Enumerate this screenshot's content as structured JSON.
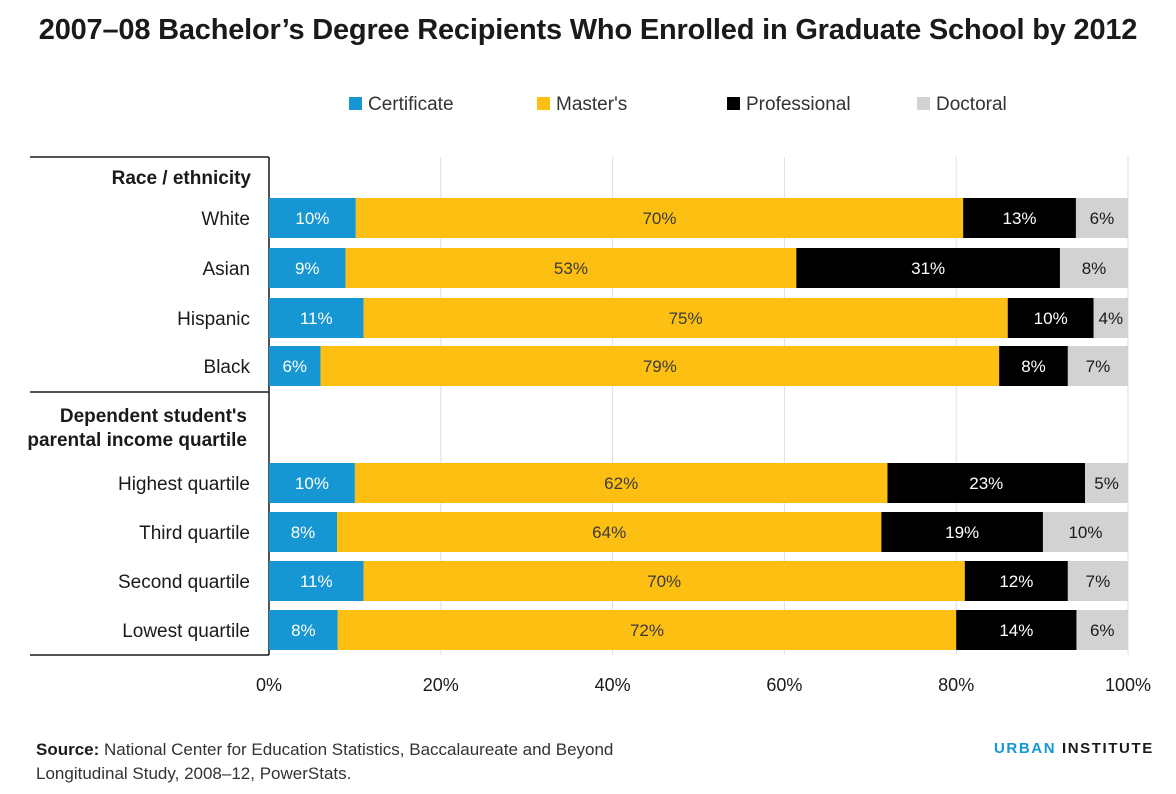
{
  "title": "2007–08 Bachelor’s Degree Recipients Who Enrolled in Graduate School by 2012",
  "source": {
    "label": "Source:",
    "line1": "National Center for Education Statistics, Baccalaureate and Beyond",
    "line2": "Longitudinal Study, 2008–12, PowerStats."
  },
  "brand": {
    "part1": "URBAN",
    "part2": "INSTITUTE"
  },
  "chart_data": {
    "type": "bar",
    "orientation": "horizontal",
    "stacked": true,
    "legend_position": "top",
    "xlim": [
      0,
      100
    ],
    "x_ticks": [
      "0%",
      "20%",
      "40%",
      "60%",
      "80%",
      "100%"
    ],
    "grid": true,
    "series": [
      {
        "name": "Certificate",
        "color": "#1696d2",
        "text_color": "#ffffff"
      },
      {
        "name": "Master's",
        "color": "#fdbf11",
        "text_color": "#3a3a3a"
      },
      {
        "name": "Professional",
        "color": "#000000",
        "text_color": "#ffffff"
      },
      {
        "name": "Doctoral",
        "color": "#d2d2d2",
        "text_color": "#1a1a1a"
      }
    ],
    "groups": [
      {
        "label": "Race / ethnicity",
        "rows": [
          {
            "category": "White",
            "values": [
              10,
              70,
              13,
              6
            ],
            "labels": [
              "10%",
              "70%",
              "13%",
              "6%"
            ]
          },
          {
            "category": "Asian",
            "values": [
              9,
              53,
              31,
              8
            ],
            "labels": [
              "9%",
              "53%",
              "31%",
              "8%"
            ]
          },
          {
            "category": "Hispanic",
            "values": [
              11,
              75,
              10,
              4
            ],
            "labels": [
              "11%",
              "75%",
              "10%",
              "4%"
            ]
          },
          {
            "category": "Black",
            "values": [
              6,
              79,
              8,
              7
            ],
            "labels": [
              "6%",
              "79%",
              "8%",
              "7%"
            ]
          }
        ]
      },
      {
        "label": "Dependent student's parental income quartile",
        "label_lines": [
          "Dependent student's",
          "parental income quartile"
        ],
        "rows": [
          {
            "category": "Highest quartile",
            "values": [
              10,
              62,
              23,
              5
            ],
            "labels": [
              "10%",
              "62%",
              "23%",
              "5%"
            ]
          },
          {
            "category": "Third quartile",
            "values": [
              8,
              64,
              19,
              10
            ],
            "labels": [
              "8%",
              "64%",
              "19%",
              "10%"
            ]
          },
          {
            "category": "Second quartile",
            "values": [
              11,
              70,
              12,
              7
            ],
            "labels": [
              "11%",
              "70%",
              "12%",
              "7%"
            ]
          },
          {
            "category": "Lowest quartile",
            "values": [
              8,
              72,
              14,
              6
            ],
            "labels": [
              "8%",
              "72%",
              "14%",
              "6%"
            ]
          }
        ]
      }
    ]
  }
}
